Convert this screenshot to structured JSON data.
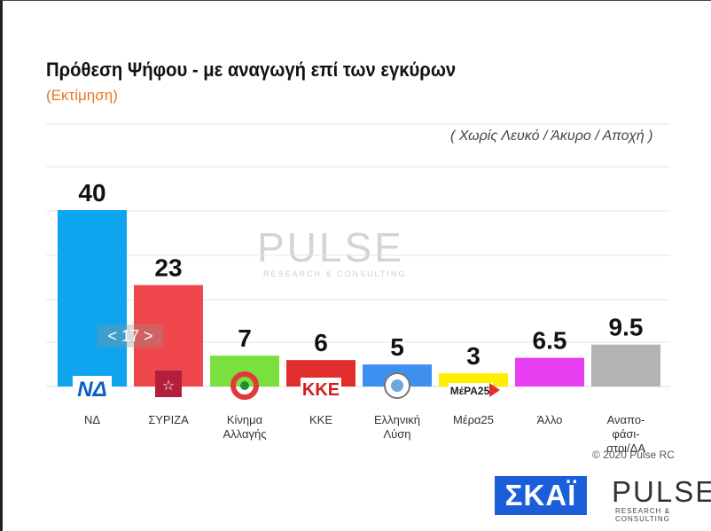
{
  "header": {
    "title": "Πρόθεση Ψήφου - με αναγωγή επί των εγκύρων",
    "subtitle": "(Εκτίμηση)",
    "note": "( Χωρίς Λευκό / Άκυρο / Αποχή )"
  },
  "watermark": {
    "brand": "PULSE",
    "tagline": "RESEARCH & CONSULTING"
  },
  "pager": {
    "label": "< 17 >"
  },
  "footer": {
    "copyright": "© 2020 Pulse RC",
    "broadcaster_logo": "ΣΚΑΪ",
    "pollster_logo": "PULSE",
    "pollster_tagline": "RESEARCH & CONSULTING"
  },
  "party_logos": {
    "nd": "ΝΔ",
    "kke": "ΚΚΕ",
    "mera25": "ΜέΡΑ25"
  },
  "chart_data": {
    "type": "bar",
    "categories": [
      "ΝΔ",
      "ΣΥΡΙΖΑ",
      "Κίνημα Αλλαγής",
      "ΚΚΕ",
      "Ελληνική Λύση",
      "Μέρα25",
      "Άλλο",
      "Αναπο-φάσι-στοι/ΔΑ"
    ],
    "category_lines": [
      [
        "ΝΔ"
      ],
      [
        "ΣΥΡΙΖΑ"
      ],
      [
        "Κίνημα",
        "Αλλαγής"
      ],
      [
        "ΚΚΕ"
      ],
      [
        "Ελληνική",
        "Λύση"
      ],
      [
        "Μέρα25"
      ],
      [
        "Άλλο"
      ],
      [
        "Αναπο-",
        "φάσι-",
        "στοι/ΔΑ"
      ]
    ],
    "values": [
      40,
      23,
      7,
      6,
      5,
      3,
      6.5,
      9.5
    ],
    "value_labels": [
      "40",
      "23",
      "7",
      "6",
      "5",
      "3",
      "6.5",
      "9.5"
    ],
    "colors": [
      "#0ea5f0",
      "#f0474c",
      "#79e03e",
      "#e22d2d",
      "#3d8ff0",
      "#ffee00",
      "#e63ef0",
      "#b3b3b3"
    ],
    "ylim": [
      0,
      50
    ],
    "grid": true,
    "legend": "none"
  }
}
